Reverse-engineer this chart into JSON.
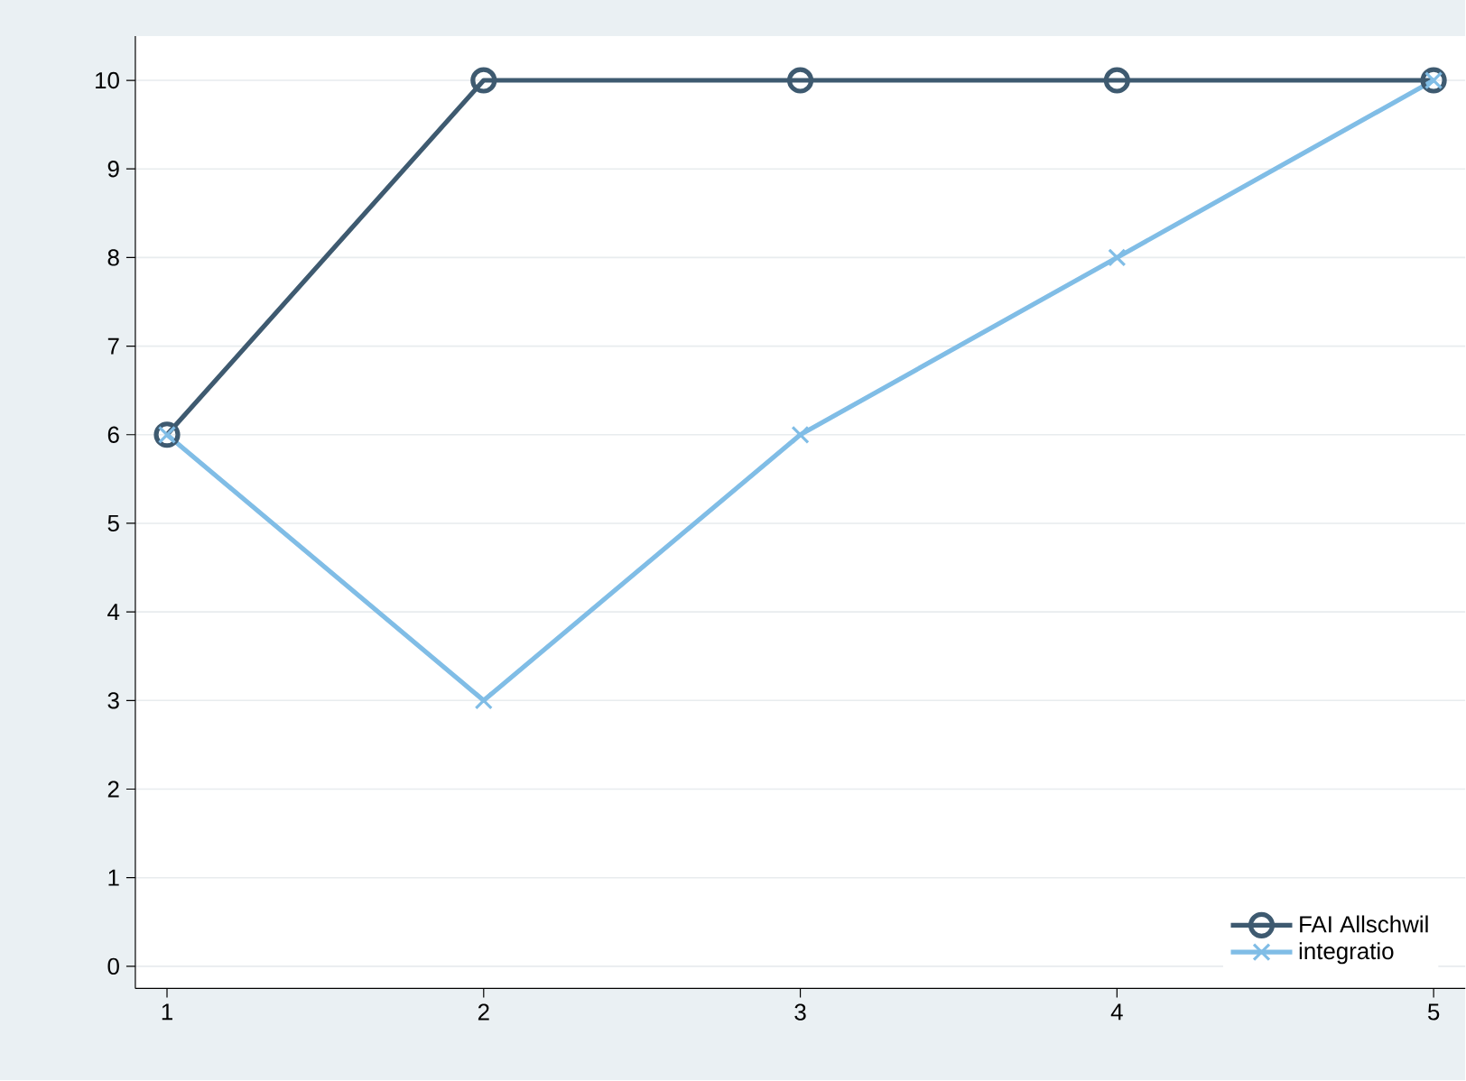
{
  "chart_data": {
    "type": "line",
    "x": [
      1,
      2,
      3,
      4,
      5
    ],
    "series": [
      {
        "name": "FAI Allschwil",
        "color": "#3e5a70",
        "marker": "circle",
        "values": [
          6,
          10,
          10,
          10,
          10
        ]
      },
      {
        "name": "integratio",
        "color": "#80bde6",
        "marker": "cross",
        "values": [
          6,
          3,
          6,
          8,
          10
        ]
      }
    ],
    "xlim": [
      0.9,
      5.1
    ],
    "xticks": [
      1,
      2,
      3,
      4,
      5
    ],
    "ylim": [
      -0.25,
      10.5
    ],
    "yticks": [
      0,
      1,
      2,
      3,
      4,
      5,
      6,
      7,
      8,
      9,
      10
    ],
    "grid": "y",
    "legend": "bottom right",
    "line_style": "solid"
  }
}
